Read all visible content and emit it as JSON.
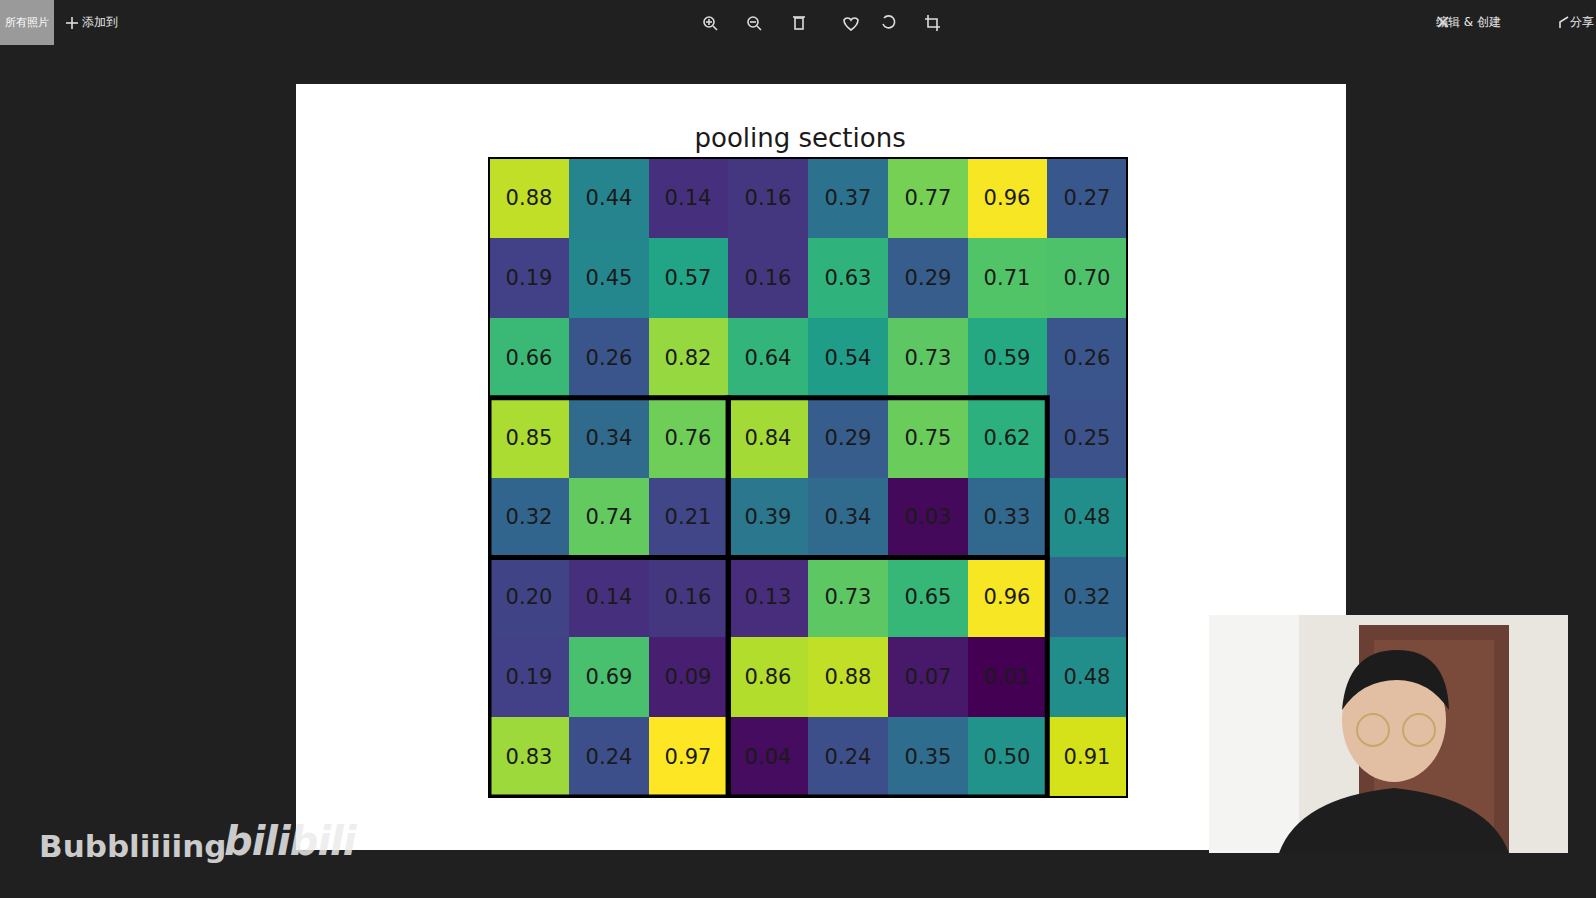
{
  "screen": {
    "toolbar": {
      "left_tab": "所有照片",
      "add": "添加到",
      "edit": "编辑 & 创建",
      "share": "分享"
    },
    "watermark": {
      "author": "Bubbliiiing",
      "site": "bilibili"
    }
  },
  "chart_data": {
    "type": "heatmap",
    "title": "pooling sections",
    "color": "Viridis",
    "values": [
      [
        0.88,
        0.44,
        0.14,
        0.16,
        0.37,
        0.77,
        0.96,
        0.27
      ],
      [
        0.19,
        0.45,
        0.57,
        0.16,
        0.63,
        0.29,
        0.71,
        0.7
      ],
      [
        0.66,
        0.26,
        0.82,
        0.64,
        0.54,
        0.73,
        0.59,
        0.26
      ],
      [
        0.85,
        0.34,
        0.76,
        0.84,
        0.29,
        0.75,
        0.62,
        0.25
      ],
      [
        0.32,
        0.74,
        0.21,
        0.39,
        0.34,
        0.03,
        0.33,
        0.48
      ],
      [
        0.2,
        0.14,
        0.16,
        0.13,
        0.73,
        0.65,
        0.96,
        0.32
      ],
      [
        0.19,
        0.69,
        0.09,
        0.86,
        0.88,
        0.07,
        0.01,
        0.48
      ],
      [
        0.83,
        0.24,
        0.97,
        0.04,
        0.24,
        0.35,
        0.5,
        0.91
      ]
    ],
    "value_labels": [
      [
        "0.88",
        "0.44",
        "0.14",
        "0.16",
        "0.37",
        "0.77",
        "0.96",
        "0.27"
      ],
      [
        "0.19",
        "0.45",
        "0.57",
        "0.16",
        "0.63",
        "0.29",
        "0.71",
        "0.70"
      ],
      [
        "0.66",
        "0.26",
        "0.82",
        "0.64",
        "0.54",
        "0.73",
        "0.59",
        "0.26"
      ],
      [
        "0.85",
        "0.34",
        "0.76",
        "0.84",
        "0.29",
        "0.75",
        "0.62",
        "0.25"
      ],
      [
        "0.32",
        "0.74",
        "0.21",
        "0.39",
        "0.34",
        "0.03",
        "0.33",
        "0.48"
      ],
      [
        "0.20",
        "0.14",
        "0.16",
        "0.13",
        "0.73",
        "0.65",
        "0.96",
        "0.32"
      ],
      [
        "0.19",
        "0.69",
        "0.09",
        "0.86",
        "0.88",
        "0.07",
        "0.01",
        "0.48"
      ],
      [
        "0.83",
        "0.24",
        "0.97",
        "0.04",
        "0.24",
        "0.35",
        "0.50",
        "0.91"
      ]
    ],
    "data_labels": true,
    "tick_labels": false,
    "sections": [
      {
        "rows": [
          3,
          4
        ],
        "cols": [
          0,
          2
        ]
      },
      {
        "rows": [
          3,
          4
        ],
        "cols": [
          3,
          6
        ]
      },
      {
        "rows": [
          5,
          7
        ],
        "cols": [
          0,
          2
        ]
      },
      {
        "rows": [
          5,
          7
        ],
        "cols": [
          3,
          6
        ]
      }
    ]
  }
}
